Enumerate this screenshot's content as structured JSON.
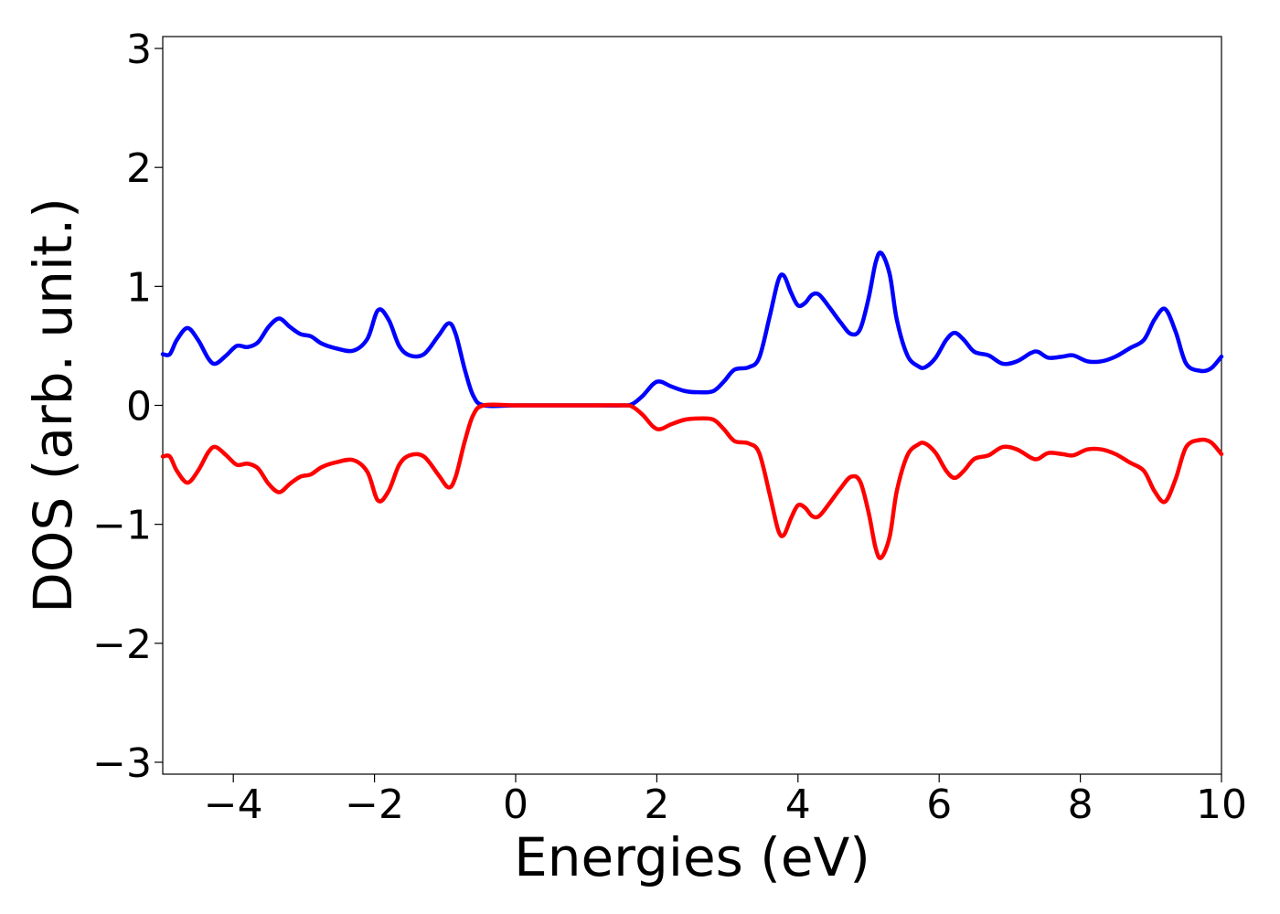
{
  "chart_data": {
    "type": "line",
    "xlabel": "Energies (eV)",
    "ylabel": "DOS (arb. unit.)",
    "xlim": [
      -5,
      10
    ],
    "ylim": [
      -3.1,
      3.1
    ],
    "x_ticks": [
      -4,
      -2,
      0,
      2,
      4,
      6,
      8,
      10
    ],
    "x_tick_labels": [
      "−4",
      "−2",
      "0",
      "2",
      "4",
      "6",
      "8",
      "10"
    ],
    "y_ticks": [
      -3,
      -2,
      -1,
      0,
      1,
      2,
      3
    ],
    "y_tick_labels": [
      "−3",
      "−2",
      "−1",
      "0",
      "1",
      "2",
      "3"
    ],
    "grid": false,
    "legend": "none",
    "series": [
      {
        "color": "#0000ff",
        "points": [
          [
            -5.0,
            0.43
          ],
          [
            -4.9,
            0.43
          ],
          [
            -4.8,
            0.55
          ],
          [
            -4.65,
            0.65
          ],
          [
            -4.5,
            0.55
          ],
          [
            -4.35,
            0.39
          ],
          [
            -4.25,
            0.35
          ],
          [
            -4.1,
            0.42
          ],
          [
            -3.95,
            0.5
          ],
          [
            -3.8,
            0.49
          ],
          [
            -3.65,
            0.53
          ],
          [
            -3.5,
            0.66
          ],
          [
            -3.35,
            0.73
          ],
          [
            -3.2,
            0.66
          ],
          [
            -3.05,
            0.6
          ],
          [
            -2.9,
            0.58
          ],
          [
            -2.75,
            0.52
          ],
          [
            -2.55,
            0.48
          ],
          [
            -2.3,
            0.46
          ],
          [
            -2.1,
            0.56
          ],
          [
            -1.95,
            0.8
          ],
          [
            -1.8,
            0.72
          ],
          [
            -1.65,
            0.5
          ],
          [
            -1.5,
            0.42
          ],
          [
            -1.3,
            0.43
          ],
          [
            -1.1,
            0.58
          ],
          [
            -0.95,
            0.69
          ],
          [
            -0.85,
            0.6
          ],
          [
            -0.72,
            0.3
          ],
          [
            -0.6,
            0.08
          ],
          [
            -0.45,
            0.0
          ],
          [
            0.0,
            0.0
          ],
          [
            0.5,
            0.0
          ],
          [
            1.0,
            0.0
          ],
          [
            1.5,
            0.0
          ],
          [
            1.65,
            0.01
          ],
          [
            1.8,
            0.08
          ],
          [
            1.95,
            0.18
          ],
          [
            2.05,
            0.2
          ],
          [
            2.2,
            0.16
          ],
          [
            2.4,
            0.12
          ],
          [
            2.6,
            0.11
          ],
          [
            2.8,
            0.12
          ],
          [
            2.95,
            0.2
          ],
          [
            3.1,
            0.3
          ],
          [
            3.3,
            0.32
          ],
          [
            3.45,
            0.4
          ],
          [
            3.6,
            0.75
          ],
          [
            3.72,
            1.05
          ],
          [
            3.8,
            1.09
          ],
          [
            3.9,
            0.95
          ],
          [
            4.0,
            0.84
          ],
          [
            4.1,
            0.86
          ],
          [
            4.2,
            0.93
          ],
          [
            4.3,
            0.93
          ],
          [
            4.45,
            0.82
          ],
          [
            4.6,
            0.7
          ],
          [
            4.75,
            0.6
          ],
          [
            4.88,
            0.64
          ],
          [
            5.0,
            0.9
          ],
          [
            5.1,
            1.2
          ],
          [
            5.18,
            1.28
          ],
          [
            5.3,
            1.1
          ],
          [
            5.4,
            0.72
          ],
          [
            5.55,
            0.42
          ],
          [
            5.7,
            0.33
          ],
          [
            5.8,
            0.32
          ],
          [
            5.95,
            0.4
          ],
          [
            6.1,
            0.55
          ],
          [
            6.22,
            0.61
          ],
          [
            6.35,
            0.55
          ],
          [
            6.5,
            0.45
          ],
          [
            6.7,
            0.42
          ],
          [
            6.9,
            0.35
          ],
          [
            7.1,
            0.37
          ],
          [
            7.3,
            0.44
          ],
          [
            7.4,
            0.45
          ],
          [
            7.55,
            0.4
          ],
          [
            7.75,
            0.41
          ],
          [
            7.9,
            0.42
          ],
          [
            8.1,
            0.37
          ],
          [
            8.3,
            0.37
          ],
          [
            8.5,
            0.41
          ],
          [
            8.7,
            0.48
          ],
          [
            8.9,
            0.55
          ],
          [
            9.05,
            0.72
          ],
          [
            9.2,
            0.81
          ],
          [
            9.35,
            0.62
          ],
          [
            9.5,
            0.35
          ],
          [
            9.7,
            0.29
          ],
          [
            9.85,
            0.31
          ],
          [
            10.0,
            0.41
          ]
        ]
      },
      {
        "color": "#ff0000",
        "points": [
          [
            -5.0,
            -0.43
          ],
          [
            -4.9,
            -0.43
          ],
          [
            -4.8,
            -0.55
          ],
          [
            -4.65,
            -0.65
          ],
          [
            -4.5,
            -0.55
          ],
          [
            -4.35,
            -0.39
          ],
          [
            -4.25,
            -0.35
          ],
          [
            -4.1,
            -0.42
          ],
          [
            -3.95,
            -0.5
          ],
          [
            -3.8,
            -0.49
          ],
          [
            -3.65,
            -0.53
          ],
          [
            -3.5,
            -0.66
          ],
          [
            -3.35,
            -0.73
          ],
          [
            -3.2,
            -0.66
          ],
          [
            -3.05,
            -0.6
          ],
          [
            -2.9,
            -0.58
          ],
          [
            -2.75,
            -0.52
          ],
          [
            -2.55,
            -0.48
          ],
          [
            -2.3,
            -0.46
          ],
          [
            -2.1,
            -0.56
          ],
          [
            -1.95,
            -0.8
          ],
          [
            -1.8,
            -0.72
          ],
          [
            -1.65,
            -0.5
          ],
          [
            -1.5,
            -0.42
          ],
          [
            -1.3,
            -0.43
          ],
          [
            -1.1,
            -0.58
          ],
          [
            -0.95,
            -0.69
          ],
          [
            -0.85,
            -0.6
          ],
          [
            -0.72,
            -0.3
          ],
          [
            -0.6,
            -0.08
          ],
          [
            -0.45,
            0.0
          ],
          [
            0.0,
            0.0
          ],
          [
            0.5,
            0.0
          ],
          [
            1.0,
            0.0
          ],
          [
            1.5,
            0.0
          ],
          [
            1.65,
            -0.01
          ],
          [
            1.8,
            -0.08
          ],
          [
            1.95,
            -0.18
          ],
          [
            2.05,
            -0.2
          ],
          [
            2.2,
            -0.16
          ],
          [
            2.4,
            -0.12
          ],
          [
            2.6,
            -0.11
          ],
          [
            2.8,
            -0.12
          ],
          [
            2.95,
            -0.2
          ],
          [
            3.1,
            -0.3
          ],
          [
            3.3,
            -0.32
          ],
          [
            3.45,
            -0.4
          ],
          [
            3.6,
            -0.75
          ],
          [
            3.72,
            -1.05
          ],
          [
            3.8,
            -1.09
          ],
          [
            3.9,
            -0.95
          ],
          [
            4.0,
            -0.84
          ],
          [
            4.1,
            -0.86
          ],
          [
            4.2,
            -0.93
          ],
          [
            4.3,
            -0.93
          ],
          [
            4.45,
            -0.82
          ],
          [
            4.6,
            -0.7
          ],
          [
            4.75,
            -0.6
          ],
          [
            4.88,
            -0.64
          ],
          [
            5.0,
            -0.9
          ],
          [
            5.1,
            -1.2
          ],
          [
            5.18,
            -1.28
          ],
          [
            5.3,
            -1.1
          ],
          [
            5.4,
            -0.72
          ],
          [
            5.55,
            -0.42
          ],
          [
            5.7,
            -0.33
          ],
          [
            5.8,
            -0.32
          ],
          [
            5.95,
            -0.4
          ],
          [
            6.1,
            -0.55
          ],
          [
            6.22,
            -0.61
          ],
          [
            6.35,
            -0.55
          ],
          [
            6.5,
            -0.45
          ],
          [
            6.7,
            -0.42
          ],
          [
            6.9,
            -0.35
          ],
          [
            7.1,
            -0.37
          ],
          [
            7.3,
            -0.44
          ],
          [
            7.4,
            -0.45
          ],
          [
            7.55,
            -0.4
          ],
          [
            7.75,
            -0.41
          ],
          [
            7.9,
            -0.42
          ],
          [
            8.1,
            -0.37
          ],
          [
            8.3,
            -0.37
          ],
          [
            8.5,
            -0.41
          ],
          [
            8.7,
            -0.48
          ],
          [
            8.9,
            -0.55
          ],
          [
            9.05,
            -0.72
          ],
          [
            9.2,
            -0.81
          ],
          [
            9.35,
            -0.62
          ],
          [
            9.5,
            -0.35
          ],
          [
            9.7,
            -0.29
          ],
          [
            9.85,
            -0.31
          ],
          [
            10.0,
            -0.41
          ]
        ]
      }
    ]
  }
}
